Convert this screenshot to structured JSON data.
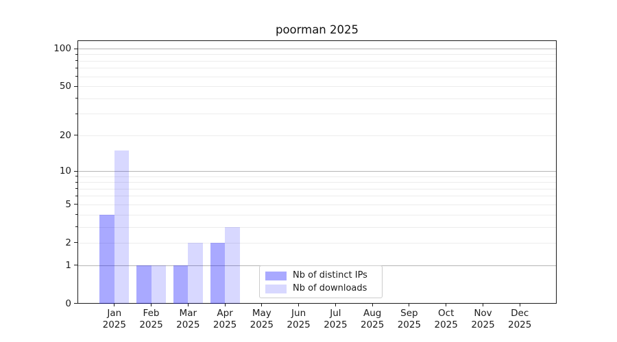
{
  "chart_data": {
    "type": "bar",
    "title": "poorman 2025",
    "categories": [
      "Jan 2025",
      "Feb 2025",
      "Mar 2025",
      "Apr 2025",
      "May 2025",
      "Jun 2025",
      "Jul 2025",
      "Aug 2025",
      "Sep 2025",
      "Oct 2025",
      "Nov 2025",
      "Dec 2025"
    ],
    "series": [
      {
        "name": "Nb of distinct IPs",
        "color": "#0000ff56",
        "color_on_white": "#aaaaf5",
        "values": [
          4,
          1,
          1,
          2,
          0,
          0,
          0,
          0,
          0,
          0,
          0,
          0
        ]
      },
      {
        "name": "Nb of downloads",
        "color": "#0000ff27",
        "color_on_white": "#d9d9f9",
        "values": [
          15,
          1,
          2,
          3,
          0,
          0,
          0,
          0,
          0,
          0,
          0,
          0
        ]
      }
    ],
    "yscale": "log10(1+x)",
    "ylim": [
      0,
      100
    ],
    "y_tick_labels": [
      0,
      1,
      2,
      5,
      10,
      20,
      50,
      100
    ],
    "y_major_gridlines": [
      1,
      10,
      100
    ],
    "y_minor_gridlines": [
      2,
      3,
      4,
      5,
      6,
      7,
      8,
      9,
      20,
      30,
      40,
      50,
      60,
      70,
      80,
      90
    ],
    "grid": true,
    "legend_position": "lower-center"
  },
  "colors": {
    "background": "#ffffff",
    "axis": "#1a1a1a",
    "major_grid": "#b4b4b4",
    "minor_grid": "#ececec",
    "legend_border": "#cccccc"
  }
}
